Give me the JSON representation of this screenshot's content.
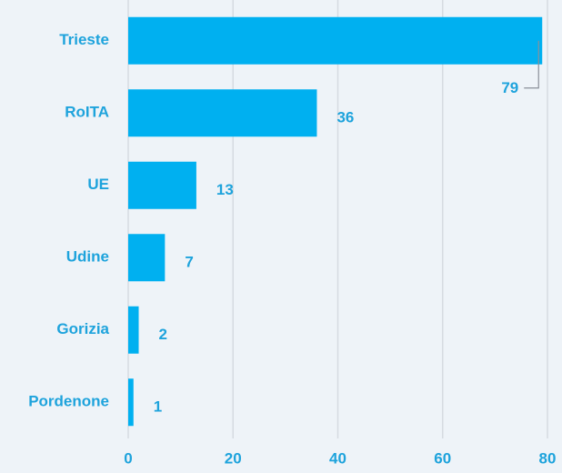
{
  "chart_data": {
    "type": "barh",
    "categories": [
      "Trieste",
      "RoITA",
      "UE",
      "Udine",
      "Gorizia",
      "Pordenone"
    ],
    "values": [
      79,
      36,
      13,
      7,
      2,
      1
    ],
    "color": "#00b0f0",
    "xlim": [
      0,
      80
    ],
    "xticks": [
      0,
      20,
      40,
      60,
      80
    ],
    "grid": true
  }
}
